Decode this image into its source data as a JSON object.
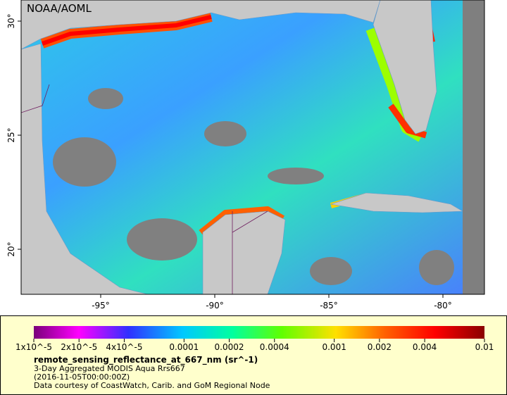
{
  "map": {
    "watermark": "NOAA/AOML",
    "lat_ticks": [
      {
        "value": 30,
        "label": "30°"
      },
      {
        "value": 25,
        "label": "25°"
      },
      {
        "value": 20,
        "label": "20°"
      }
    ],
    "lon_ticks": [
      {
        "value": -95,
        "label": "-95°"
      },
      {
        "value": -90,
        "label": "-90°"
      },
      {
        "value": -85,
        "label": "-85°"
      },
      {
        "value": -80,
        "label": "-80°"
      }
    ]
  },
  "colorbar": {
    "scale": "log",
    "range": [
      1e-05,
      0.01
    ],
    "ticks": [
      {
        "value": 1e-05,
        "label": "1x10^-5"
      },
      {
        "value": 2e-05,
        "label": "2x10^-5"
      },
      {
        "value": 4e-05,
        "label": "4x10^-5"
      },
      0.0001,
      0.0002,
      0.0004,
      0.001,
      0.002,
      0.004,
      0.01
    ]
  },
  "legend": {
    "variable": "remote_sensing_reflectance_at_667_nm (sr^-1)",
    "description": "3-Day Aggregated MODIS Aqua Rrs667",
    "time": "(2016-11-05T00:00:00Z)",
    "credit": "Data courtesy of CoastWatch, Carib. and GoM Regional Node"
  }
}
